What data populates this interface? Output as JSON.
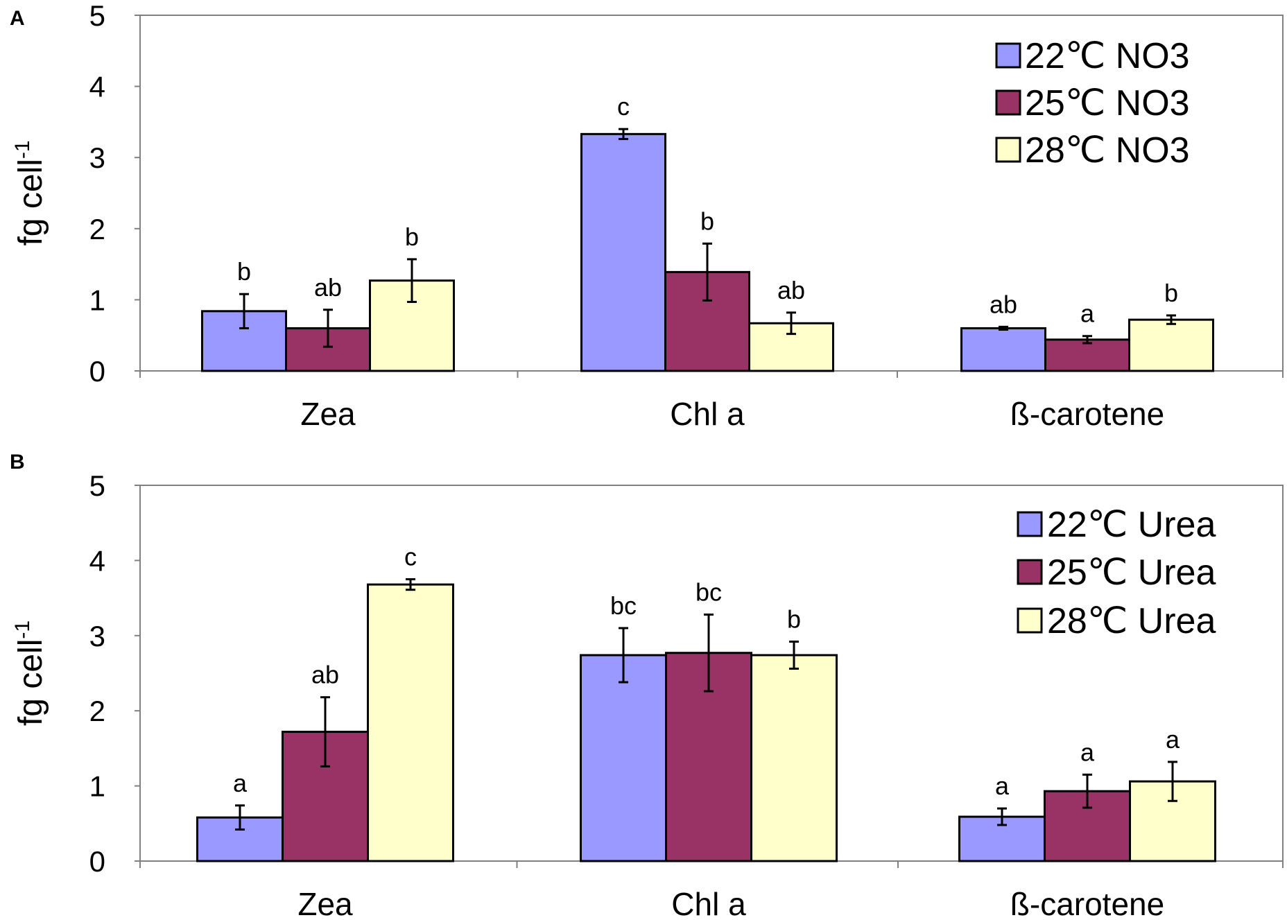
{
  "colors": {
    "series_22": "#9999ff",
    "series_25": "#993366",
    "series_28": "#ffffcc",
    "bar_outline": "#000000",
    "frame": "#808080"
  },
  "chart_data": [
    {
      "panel": "A",
      "type": "bar",
      "ylabel": "fg cell",
      "ylabel_superscript": "-1",
      "ylim": [
        0,
        5
      ],
      "yticks": [
        "0",
        "1",
        "2",
        "3",
        "4",
        "5"
      ],
      "categories": [
        "Zea",
        "Chl a",
        "ß-carotene"
      ],
      "legend_position": "top-right",
      "series": [
        {
          "name": "22℃ NO3",
          "color_key": "series_22",
          "values": [
            0.84,
            3.33,
            0.6
          ],
          "errors": [
            0.24,
            0.07,
            0.02
          ],
          "labels": [
            "b",
            "c",
            "ab"
          ]
        },
        {
          "name": "25℃ NO3",
          "color_key": "series_25",
          "values": [
            0.6,
            1.39,
            0.44
          ],
          "errors": [
            0.26,
            0.4,
            0.05
          ],
          "labels": [
            "ab",
            "b",
            "a"
          ]
        },
        {
          "name": "28℃ NO3",
          "color_key": "series_28",
          "values": [
            1.27,
            0.67,
            0.72
          ],
          "errors": [
            0.3,
            0.15,
            0.06
          ],
          "labels": [
            "b",
            "ab",
            "b"
          ]
        }
      ]
    },
    {
      "panel": "B",
      "type": "bar",
      "ylabel": "fg cell",
      "ylabel_superscript": "-1",
      "ylim": [
        0,
        5
      ],
      "yticks": [
        "0",
        "1",
        "2",
        "3",
        "4",
        "5"
      ],
      "categories": [
        "Zea",
        "Chl a",
        "ß-carotene"
      ],
      "legend_position": "top-right",
      "series": [
        {
          "name": "22℃ Urea",
          "color_key": "series_22",
          "values": [
            0.58,
            2.74,
            0.59
          ],
          "errors": [
            0.16,
            0.36,
            0.11
          ],
          "labels": [
            "a",
            "bc",
            "a"
          ]
        },
        {
          "name": "25℃ Urea",
          "color_key": "series_25",
          "values": [
            1.72,
            2.77,
            0.93
          ],
          "errors": [
            0.46,
            0.51,
            0.22
          ],
          "labels": [
            "ab",
            "bc",
            "a"
          ]
        },
        {
          "name": "28℃ Urea",
          "color_key": "series_28",
          "values": [
            3.68,
            2.74,
            1.06
          ],
          "errors": [
            0.07,
            0.18,
            0.26
          ],
          "labels": [
            "c",
            "b",
            "a"
          ]
        }
      ]
    }
  ]
}
